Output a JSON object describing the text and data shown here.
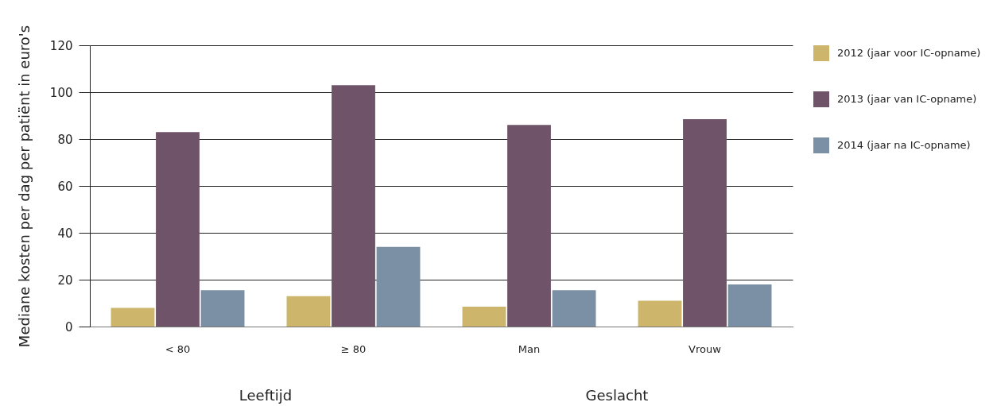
{
  "chart_data": {
    "type": "bar",
    "ylabel": "Mediane kosten per dag per patiënt in euro's",
    "categories": [
      "< 80",
      "≥ 80",
      "Man",
      "Vrouw"
    ],
    "series": [
      {
        "name": "2012 (jaar voor IC-opname)",
        "color": "#cdb66c",
        "values": [
          8,
          13,
          8.5,
          11
        ]
      },
      {
        "name": "2013 (jaar van IC-opname)",
        "color": "#6f5469",
        "values": [
          83,
          103,
          86,
          88.5
        ]
      },
      {
        "name": "2014 (jaar na IC-opname)",
        "color": "#7b90a4",
        "values": [
          15.5,
          34,
          15.5,
          18
        ]
      }
    ],
    "ylim": [
      0,
      120
    ],
    "yticks": [
      0,
      20,
      40,
      60,
      80,
      100,
      120
    ],
    "grid": "y",
    "legend": "right",
    "annotations": [
      "Leeftijd",
      "Geslacht"
    ]
  }
}
